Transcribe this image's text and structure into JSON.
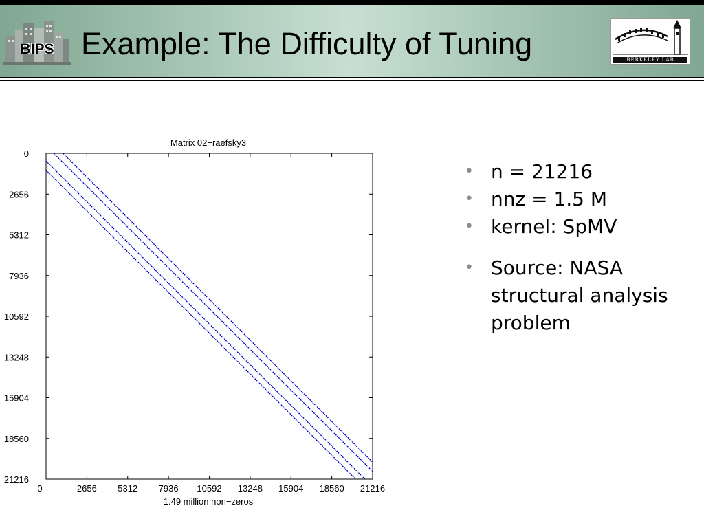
{
  "header": {
    "title": "Example: The Difficulty of Tuning",
    "logo_left_text": "BIPS",
    "logo_right_text": "BERKELEY LAB"
  },
  "figure": {
    "chart_data": {
      "type": "spy",
      "title": "Matrix 02−raefsky3",
      "xlabel": "1.49 million non−zeros",
      "ylabel": "",
      "xticks": [
        "0",
        "2656",
        "5312",
        "7936",
        "10592",
        "13248",
        "15904",
        "18560",
        "21216"
      ],
      "yticks": [
        "0",
        "2656",
        "5312",
        "7936",
        "10592",
        "13248",
        "15904",
        "18560",
        "21216"
      ],
      "xlim": [
        0,
        21216
      ],
      "ylim": [
        0,
        21216
      ],
      "y_axis_direction": "top-to-bottom",
      "marker_color": "#0000cc",
      "bands": [
        {
          "row_start": 0,
          "col_start": 500,
          "row_end": 21216,
          "col_end": 21716
        },
        {
          "row_start": 0,
          "col_start": 1100,
          "row_end": 21216,
          "col_end": 22316
        },
        {
          "row_start": 500,
          "col_start": 0,
          "row_end": 21216,
          "col_end": 20716
        },
        {
          "row_start": 1100,
          "col_start": 0,
          "row_end": 21216,
          "col_end": 20116
        }
      ]
    }
  },
  "bullets": [
    {
      "text": "n = 21216"
    },
    {
      "text": "nnz = 1.5 M"
    },
    {
      "text": "kernel: SpMV"
    },
    {
      "text": "Source: NASA structural analysis problem"
    }
  ],
  "colors": {
    "header_gradient_edge": "#80a792",
    "header_gradient_center": "#c7dfd2",
    "bullet_dot": "#8c8c8c",
    "spy_marker": "#0000cc"
  }
}
